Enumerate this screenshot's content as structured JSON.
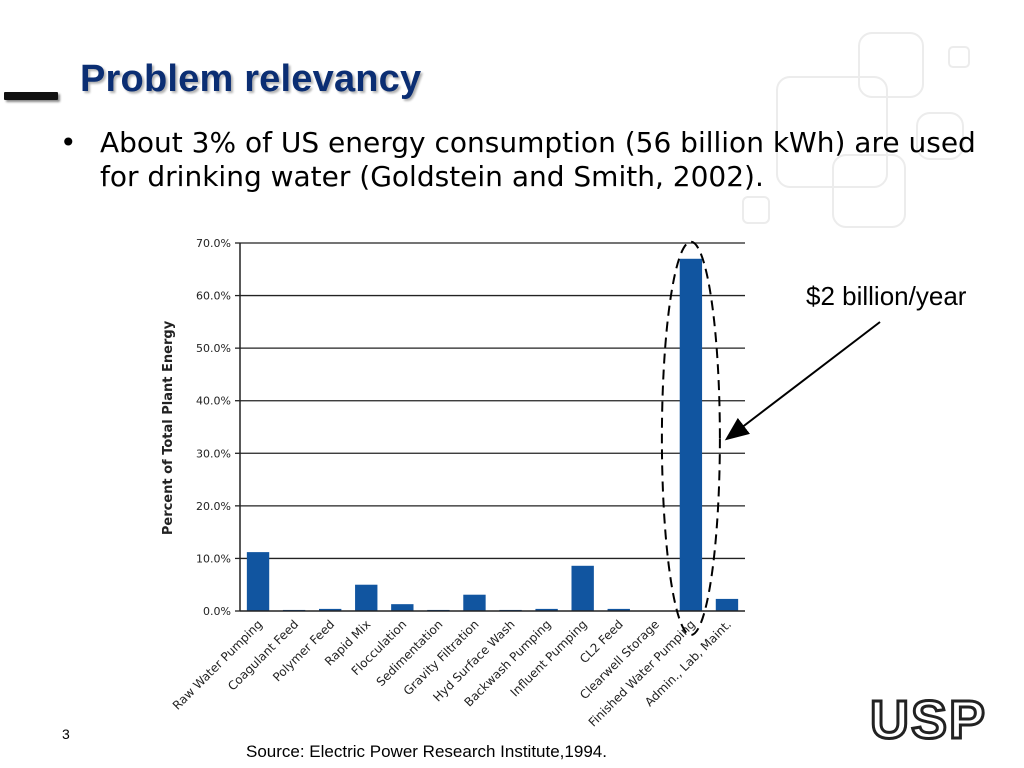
{
  "slide": {
    "title": "Problem relevancy",
    "bullet": "About 3% of US energy consumption (56 billion kWh) are used for drinking water (Goldstein and Smith, 2002).",
    "annotation": "$2 billion/year",
    "page_number": "3",
    "source": "Source: Electric Power Research Institute,1994.",
    "logo_text": "USP",
    "colors": {
      "title": "#0b2e73",
      "bar": "#1155a0",
      "logo": "#222222"
    }
  },
  "chart_data": {
    "type": "bar",
    "ylabel": "Percent of Total Plant Energy",
    "ylim": [
      0,
      70
    ],
    "ytick_labels": [
      "0.0%",
      "10.0%",
      "20.0%",
      "30.0%",
      "40.0%",
      "50.0%",
      "60.0%",
      "70.0%"
    ],
    "ytick_values": [
      0,
      10,
      20,
      30,
      40,
      50,
      60,
      70
    ],
    "grid": true,
    "categories": [
      "Raw Water Pumping",
      "Coagulant Feed",
      "Polymer Feed",
      "Rapid Mix",
      "Flocculation",
      "Sedimentation",
      "Gravity Filtration",
      "Hyd Surface Wash",
      "Backwash Pumping",
      "Influent Pumping",
      "CL2 Feed",
      "Clearwell Storage",
      "Finished Water Pumping",
      "Admin., Lab, Maint."
    ],
    "values": [
      11.2,
      0.2,
      0.4,
      5.0,
      1.3,
      0.2,
      3.1,
      0.2,
      0.4,
      8.6,
      0.4,
      0,
      67.0,
      2.3
    ],
    "highlighted_category": "Finished Water Pumping"
  }
}
